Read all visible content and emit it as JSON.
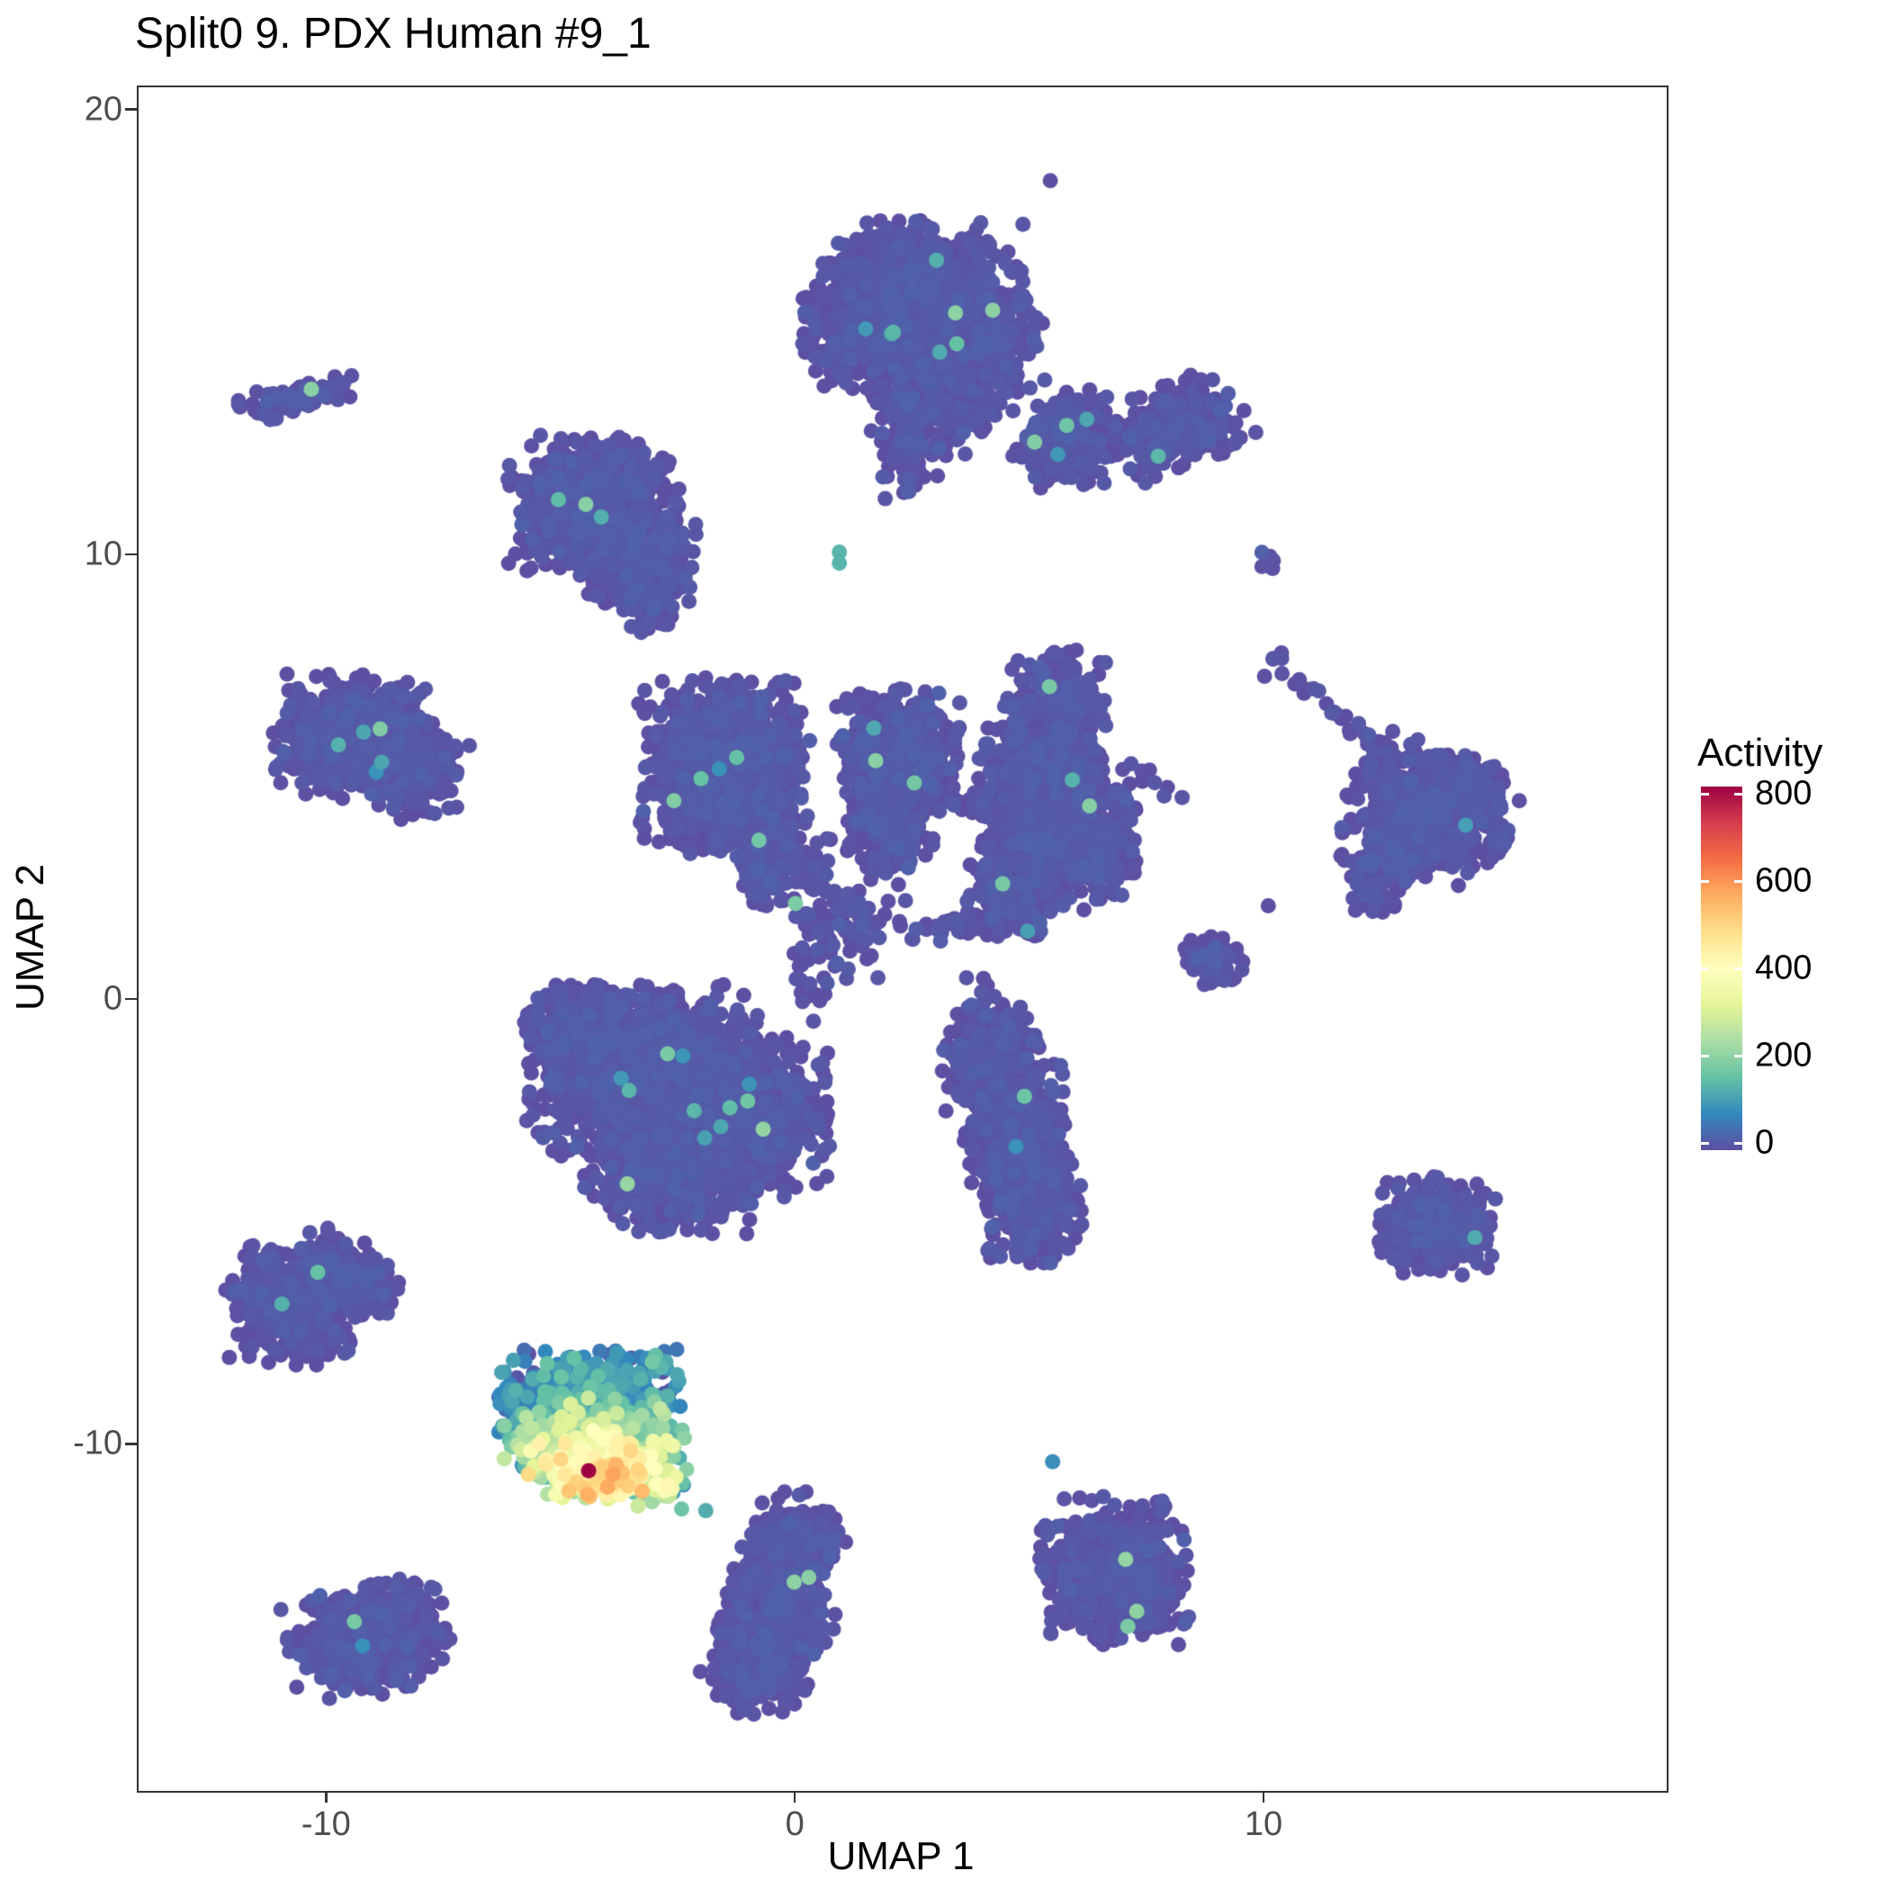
{
  "chart_data": {
    "type": "scatter",
    "title": "Split0 9. PDX Human #9_1",
    "xlabel": "UMAP 1",
    "ylabel": "UMAP 2",
    "xlim": [
      -14.0,
      18.6
    ],
    "ylim": [
      -17.8,
      20.5
    ],
    "x_ticks": [
      -10,
      0,
      10
    ],
    "y_ticks": [
      -10,
      0,
      10,
      20
    ],
    "grid": false,
    "legend": {
      "title": "Activity",
      "ticks": [
        800,
        600,
        400,
        200,
        0
      ],
      "min": 0,
      "max": 800,
      "position": "right"
    },
    "palette": {
      "name": "spectral-reversed",
      "stops": [
        "#5E4FA2",
        "#3288BD",
        "#66C2A5",
        "#ABDDA4",
        "#E6F598",
        "#FFFFBF",
        "#FEE08B",
        "#FDAE61",
        "#F46D43",
        "#D53E4F",
        "#9E0142"
      ]
    },
    "base_activity": {
      "mean": 3,
      "sd": 10,
      "outlier_prob": 0.003,
      "outlier_min": 90,
      "outlier_max": 220
    },
    "seed": 20240909,
    "clusters": [
      {
        "name": "top-main",
        "cx": 2.6,
        "cy": 15.8,
        "sx": 1.0,
        "sy": 0.75,
        "rot": 0,
        "n": 1000
      },
      {
        "name": "top-left-lobe",
        "cx": 1.3,
        "cy": 14.9,
        "sx": 0.5,
        "sy": 0.55,
        "rot": 0,
        "n": 250
      },
      {
        "name": "top-lower-lobe",
        "cx": 2.9,
        "cy": 13.7,
        "sx": 0.6,
        "sy": 0.65,
        "rot": 0,
        "n": 380
      },
      {
        "name": "top-right-lobe",
        "cx": 4.3,
        "cy": 14.7,
        "sx": 0.45,
        "sy": 0.55,
        "rot": 0,
        "n": 200
      },
      {
        "name": "top-tail",
        "cx": 2.4,
        "cy": 12.2,
        "sx": 0.28,
        "sy": 0.45,
        "rot": 0,
        "n": 55
      },
      {
        "name": "round-mid-right",
        "cx": 5.8,
        "cy": 12.6,
        "sx": 0.5,
        "sy": 0.5,
        "rot": 0,
        "n": 300
      },
      {
        "name": "between-dots",
        "cx": 4.0,
        "cy": 13.3,
        "sx": 0.22,
        "sy": 0.26,
        "rot": 0,
        "n": 12
      },
      {
        "name": "comma-right",
        "cx": 8.2,
        "cy": 12.9,
        "sx": 0.62,
        "sy": 0.42,
        "rot": 25,
        "n": 330
      },
      {
        "name": "tiny-pair-right",
        "cx": 10.0,
        "cy": 9.9,
        "sx": 0.12,
        "sy": 0.2,
        "rot": 0,
        "n": 6
      },
      {
        "name": "left-tilted-small",
        "cx": -10.6,
        "cy": 13.5,
        "sx": 0.55,
        "sy": 0.17,
        "rot": 14,
        "n": 95
      },
      {
        "name": "left-small-dot",
        "cx": -11.2,
        "cy": 13.1,
        "sx": 0.1,
        "sy": 0.1,
        "rot": 0,
        "n": 4
      },
      {
        "name": "midleft-pear-main",
        "cx": -4.3,
        "cy": 11.1,
        "sx": 0.8,
        "sy": 0.7,
        "rot": 0,
        "n": 950
      },
      {
        "name": "midleft-pear-lower",
        "cx": -3.3,
        "cy": 9.9,
        "sx": 0.55,
        "sy": 0.5,
        "rot": 0,
        "n": 360
      },
      {
        "name": "midleft-pear-tail",
        "cx": -3.1,
        "cy": 8.9,
        "sx": 0.25,
        "sy": 0.35,
        "rot": 0,
        "n": 70
      },
      {
        "name": "left-mid-main",
        "cx": -9.4,
        "cy": 5.9,
        "sx": 0.75,
        "sy": 0.62,
        "rot": 0,
        "n": 780
      },
      {
        "name": "left-mid-bump",
        "cx": -8.2,
        "cy": 5.0,
        "sx": 0.45,
        "sy": 0.42,
        "rot": 0,
        "n": 180
      },
      {
        "name": "left-mid-sparse",
        "cx": -7.3,
        "cy": 5.3,
        "sx": 0.28,
        "sy": 0.5,
        "rot": 0,
        "n": 9
      },
      {
        "name": "center-upper-main",
        "cx": -1.5,
        "cy": 5.2,
        "sx": 0.8,
        "sy": 0.88,
        "rot": 0,
        "n": 1150
      },
      {
        "name": "center-upper-tail",
        "cx": -0.6,
        "cy": 3.2,
        "sx": 0.3,
        "sy": 0.5,
        "rot": 0,
        "n": 130
      },
      {
        "name": "center-col",
        "cx": 2.2,
        "cy": 5.6,
        "sx": 0.58,
        "sy": 0.6,
        "rot": 0,
        "n": 560
      },
      {
        "name": "center-col-lower",
        "cx": 2.0,
        "cy": 4.0,
        "sx": 0.45,
        "sy": 0.55,
        "rot": 0,
        "n": 320
      },
      {
        "name": "hub",
        "cx": 1.1,
        "cy": 1.8,
        "sx": 0.55,
        "sy": 0.6,
        "rot": 0,
        "n": 80
      },
      {
        "name": "hub-bridge-up",
        "cx": 0.4,
        "cy": 2.9,
        "sx": 0.3,
        "sy": 0.45,
        "rot": 0,
        "n": 35
      },
      {
        "name": "bridge-kl-mid",
        "cx": 4.0,
        "cy": 4.3,
        "sx": 0.6,
        "sy": 0.15,
        "rot": -15,
        "n": 32
      },
      {
        "name": "bridge-l-low",
        "cx": 3.5,
        "cy": 1.7,
        "sx": 0.7,
        "sy": 0.16,
        "rot": 10,
        "n": 45
      },
      {
        "name": "right-col-main",
        "cx": 5.3,
        "cy": 4.4,
        "sx": 0.6,
        "sy": 1.05,
        "rot": 0,
        "n": 950
      },
      {
        "name": "right-col-top",
        "cx": 5.6,
        "cy": 6.7,
        "sx": 0.45,
        "sy": 0.5,
        "rot": 0,
        "n": 250
      },
      {
        "name": "right-col-botleft",
        "cx": 4.7,
        "cy": 2.4,
        "sx": 0.45,
        "sy": 0.5,
        "rot": 0,
        "n": 240
      },
      {
        "name": "right-col-east",
        "cx": 6.4,
        "cy": 3.6,
        "sx": 0.4,
        "sy": 0.6,
        "rot": 0,
        "n": 300
      },
      {
        "name": "east-bridge",
        "cx": 7.6,
        "cy": 4.9,
        "sx": 0.5,
        "sy": 0.14,
        "rot": -18,
        "n": 10
      },
      {
        "name": "arrow-main",
        "cx": 13.5,
        "cy": 4.3,
        "sx": 0.8,
        "sy": 0.6,
        "rot": -25,
        "n": 600
      },
      {
        "name": "arrow-arm",
        "cx": 12.9,
        "cy": 3.3,
        "sx": 0.55,
        "sy": 0.33,
        "rot": 28,
        "n": 210
      },
      {
        "name": "arrow-tip",
        "cx": 14.4,
        "cy": 4.9,
        "sx": 0.3,
        "sy": 0.3,
        "rot": 0,
        "n": 90
      },
      {
        "name": "arrow-trail",
        "cx": 11.6,
        "cy": 6.4,
        "sx": 0.85,
        "sy": 0.08,
        "rot": -40,
        "n": 24
      },
      {
        "name": "trail-end-dots",
        "cx": 10.3,
        "cy": 7.4,
        "sx": 0.16,
        "sy": 0.2,
        "rot": 0,
        "n": 5
      },
      {
        "name": "below-arrow-dots",
        "cx": 12.4,
        "cy": 2.3,
        "sx": 0.28,
        "sy": 0.22,
        "rot": 0,
        "n": 35
      },
      {
        "name": "small-east-blob",
        "cx": 8.9,
        "cy": 0.9,
        "sx": 0.3,
        "sy": 0.26,
        "rot": 0,
        "n": 75
      },
      {
        "name": "big-main",
        "cx": -3.2,
        "cy": -1.6,
        "sx": 1.1,
        "sy": 0.85,
        "rot": 0,
        "n": 1700
      },
      {
        "name": "big-right",
        "cx": -1.2,
        "cy": -2.7,
        "sx": 0.85,
        "sy": 0.8,
        "rot": 0,
        "n": 950
      },
      {
        "name": "big-bottom",
        "cx": -2.7,
        "cy": -3.9,
        "sx": 0.8,
        "sy": 0.6,
        "rot": 0,
        "n": 600
      },
      {
        "name": "big-topleft",
        "cx": -4.7,
        "cy": -0.6,
        "sx": 0.5,
        "sy": 0.42,
        "rot": 0,
        "n": 250
      },
      {
        "name": "bridge-up-from-big",
        "cx": 0.3,
        "cy": 0.6,
        "sx": 0.18,
        "sy": 0.55,
        "rot": 0,
        "n": 20
      },
      {
        "name": "diag-1",
        "cx": 4.2,
        "cy": -1.3,
        "sx": 0.5,
        "sy": 0.6,
        "rot": 0,
        "n": 320
      },
      {
        "name": "diag-2",
        "cx": 4.7,
        "cy": -3.0,
        "sx": 0.5,
        "sy": 0.7,
        "rot": 0,
        "n": 420
      },
      {
        "name": "diag-3",
        "cx": 5.1,
        "cy": -4.6,
        "sx": 0.45,
        "sy": 0.6,
        "rot": 0,
        "n": 360
      },
      {
        "name": "diag-top-dots",
        "cx": 4.0,
        "cy": -0.1,
        "sx": 0.2,
        "sy": 0.38,
        "rot": 0,
        "n": 12
      },
      {
        "name": "right-square",
        "cx": 13.7,
        "cy": -5.1,
        "sx": 0.55,
        "sy": 0.48,
        "rot": 0,
        "n": 430
      },
      {
        "name": "leftbot-tri-1",
        "cx": -10.7,
        "cy": -6.9,
        "sx": 0.65,
        "sy": 0.6,
        "rot": 0,
        "n": 480
      },
      {
        "name": "leftbot-tri-2",
        "cx": -9.5,
        "cy": -6.2,
        "sx": 0.55,
        "sy": 0.35,
        "rot": -25,
        "n": 280
      },
      {
        "name": "hot-top",
        "cx": -4.4,
        "cy": -9.0,
        "sx": 0.85,
        "sy": 0.5,
        "rot": 0,
        "n": 550,
        "am": 70,
        "asd": 50
      },
      {
        "name": "hot-mid",
        "cx": -4.3,
        "cy": -9.8,
        "sx": 0.85,
        "sy": 0.42,
        "rot": 0,
        "n": 480,
        "am": 160,
        "asd": 70
      },
      {
        "name": "hot-low",
        "cx": -4.1,
        "cy": -10.45,
        "sx": 0.7,
        "sy": 0.35,
        "rot": 0,
        "n": 370,
        "am": 290,
        "asd": 90
      },
      {
        "name": "hot-edge",
        "cx": -4.0,
        "cy": -10.8,
        "sx": 0.5,
        "sy": 0.2,
        "rot": 0,
        "n": 140,
        "am": 380,
        "asd": 90
      },
      {
        "name": "hot-tail",
        "cx": -2.8,
        "cy": -11.0,
        "sx": 0.3,
        "sy": 0.25,
        "rot": 0,
        "n": 24,
        "am": 200,
        "asd": 80
      },
      {
        "name": "botcent-1",
        "cx": 0.0,
        "cy": -12.4,
        "sx": 0.48,
        "sy": 0.6,
        "rot": -20,
        "n": 330
      },
      {
        "name": "botcent-2",
        "cx": -0.4,
        "cy": -13.9,
        "sx": 0.55,
        "sy": 0.75,
        "rot": -15,
        "n": 470
      },
      {
        "name": "botcent-3",
        "cx": -0.8,
        "cy": -15.1,
        "sx": 0.42,
        "sy": 0.45,
        "rot": 0,
        "n": 190
      },
      {
        "name": "botleft",
        "cx": -9.1,
        "cy": -14.4,
        "sx": 0.75,
        "sy": 0.55,
        "rot": 12,
        "n": 520
      },
      {
        "name": "botright",
        "cx": 6.8,
        "cy": -12.9,
        "sx": 0.7,
        "sy": 0.75,
        "rot": 0,
        "n": 650
      }
    ],
    "highlight_points": [
      {
        "x": 5.45,
        "y": 18.4,
        "activity": 0
      },
      {
        "x": 0.95,
        "y": 10.05,
        "activity": 140
      },
      {
        "x": 0.95,
        "y": 9.8,
        "activity": 140
      },
      {
        "x": 10.1,
        "y": 2.1,
        "activity": 0
      },
      {
        "x": 5.8,
        "y": 12.9,
        "activity": 170
      },
      {
        "x": -4.4,
        "y": -10.6,
        "activity": 800
      },
      {
        "x": -1.9,
        "y": -11.5,
        "activity": 130
      },
      {
        "x": 5.5,
        "y": -10.4,
        "activity": 90
      }
    ]
  },
  "style": {
    "background": "#FFFFFF",
    "panel_border_color": "#333333",
    "tick_color": "#333333",
    "tick_label_color": "#4D4D4D",
    "text_color": "#000000",
    "point_radius": 8.5
  }
}
